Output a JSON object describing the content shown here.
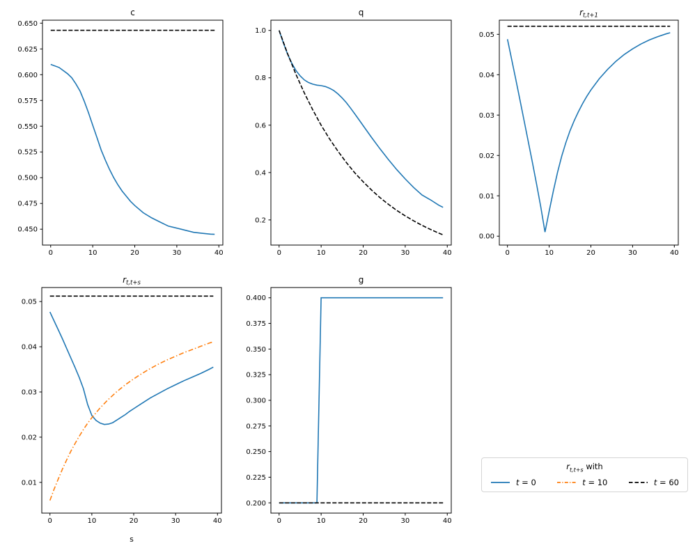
{
  "figure": {
    "background": "#ffffff",
    "colors": {
      "blue": "#1f77b4",
      "orange": "#ff7f0e",
      "black": "#000000"
    }
  },
  "legend": {
    "title": {
      "var": "r",
      "sub": "t,t+s",
      "suffix": " with"
    },
    "entries": [
      {
        "var": "t",
        "rest": " = 0",
        "color": "#1f77b4",
        "dash": "solid"
      },
      {
        "var": "t",
        "rest": " = 10",
        "color": "#ff7f0e",
        "dash": "dashdot"
      },
      {
        "var": "t",
        "rest": " = 60",
        "color": "#000000",
        "dash": "dashed"
      }
    ]
  },
  "chart_data": [
    {
      "type": "line",
      "title": {
        "text": "c",
        "sub": "",
        "math": false
      },
      "xlabel": "",
      "ylabel": "",
      "xlim": [
        -1.95,
        40.95
      ],
      "ylim": [
        0.4346,
        0.6529
      ],
      "grid": false,
      "xticks": [
        "0",
        "10",
        "20",
        "30",
        "40"
      ],
      "yticks": [
        "0.450",
        "0.475",
        "0.500",
        "0.525",
        "0.550",
        "0.575",
        "0.600",
        "0.625",
        "0.650"
      ],
      "series": [
        {
          "name": "blue-solid",
          "color": "#1f77b4",
          "dash": "solid",
          "x": [
            0,
            2,
            4,
            5,
            6,
            7,
            8,
            9,
            10,
            11,
            12,
            13,
            14,
            15,
            16,
            17,
            18,
            19,
            20,
            22,
            24,
            26,
            28,
            30,
            32,
            34,
            36,
            38,
            39
          ],
          "y": [
            0.61,
            0.607,
            0.601,
            0.597,
            0.591,
            0.584,
            0.574,
            0.563,
            0.551,
            0.539,
            0.527,
            0.517,
            0.508,
            0.5,
            0.493,
            0.487,
            0.482,
            0.477,
            0.473,
            0.466,
            0.461,
            0.457,
            0.453,
            0.451,
            0.449,
            0.447,
            0.446,
            0.4452,
            0.445
          ]
        },
        {
          "name": "black-dashed",
          "color": "#000000",
          "dash": "dashed",
          "x": [
            0,
            39
          ],
          "y": [
            0.643,
            0.643
          ]
        }
      ]
    },
    {
      "type": "line",
      "title": {
        "text": "q",
        "sub": "",
        "math": false
      },
      "xlabel": "",
      "ylabel": "",
      "xlim": [
        -1.95,
        40.95
      ],
      "ylim": [
        0.0938,
        1.0432
      ],
      "grid": false,
      "xticks": [
        "0",
        "10",
        "20",
        "30",
        "40"
      ],
      "yticks": [
        "0.2",
        "0.4",
        "0.6",
        "0.8",
        "1.0"
      ],
      "series": [
        {
          "name": "blue-solid",
          "color": "#1f77b4",
          "dash": "solid",
          "x": [
            0,
            1,
            2,
            3,
            4,
            5,
            6,
            7,
            8,
            9,
            10,
            11,
            12,
            13,
            14,
            15,
            16,
            17,
            18,
            19,
            20,
            22,
            24,
            26,
            28,
            30,
            32,
            34,
            36,
            38,
            39
          ],
          "y": [
            1.0,
            0.948,
            0.901,
            0.862,
            0.831,
            0.808,
            0.791,
            0.78,
            0.773,
            0.769,
            0.767,
            0.763,
            0.756,
            0.746,
            0.732,
            0.715,
            0.695,
            0.672,
            0.648,
            0.623,
            0.598,
            0.548,
            0.5,
            0.455,
            0.412,
            0.373,
            0.337,
            0.305,
            0.285,
            0.262,
            0.253
          ]
        },
        {
          "name": "black-dashed",
          "color": "#000000",
          "dash": "dashed",
          "x": [
            0,
            2,
            4,
            6,
            8,
            10,
            12,
            14,
            16,
            18,
            20,
            22,
            24,
            26,
            28,
            30,
            32,
            34,
            36,
            38,
            39
          ],
          "y": [
            1.0,
            0.903,
            0.815,
            0.736,
            0.665,
            0.6,
            0.542,
            0.49,
            0.442,
            0.399,
            0.361,
            0.326,
            0.294,
            0.266,
            0.24,
            0.217,
            0.196,
            0.177,
            0.16,
            0.144,
            0.137
          ]
        }
      ]
    },
    {
      "type": "line",
      "title": {
        "text": "r",
        "sub": "t,t+1",
        "math": true
      },
      "xlabel": "",
      "ylabel": "",
      "xlim": [
        -1.95,
        40.95
      ],
      "ylim": [
        -0.0022,
        0.0535
      ],
      "grid": false,
      "xticks": [
        "0",
        "10",
        "20",
        "30",
        "40"
      ],
      "yticks": [
        "0.00",
        "0.01",
        "0.02",
        "0.03",
        "0.04",
        "0.05"
      ],
      "series": [
        {
          "name": "blue-solid",
          "color": "#1f77b4",
          "dash": "solid",
          "x": [
            0,
            1,
            2,
            3,
            4,
            5,
            6,
            7,
            8,
            9,
            10,
            11,
            12,
            13,
            14,
            15,
            16,
            17,
            18,
            19,
            20,
            22,
            24,
            26,
            28,
            30,
            32,
            34,
            36,
            38,
            39
          ],
          "y": [
            0.0488,
            0.0438,
            0.0388,
            0.0337,
            0.0286,
            0.0234,
            0.0182,
            0.0128,
            0.0072,
            0.001,
            0.0062,
            0.0112,
            0.0158,
            0.0198,
            0.0232,
            0.0261,
            0.0286,
            0.0308,
            0.0328,
            0.0346,
            0.0362,
            0.039,
            0.0413,
            0.0433,
            0.045,
            0.0464,
            0.0476,
            0.0486,
            0.0494,
            0.0501,
            0.0504
          ]
        },
        {
          "name": "black-dashed",
          "color": "#000000",
          "dash": "dashed",
          "x": [
            0,
            39
          ],
          "y": [
            0.052,
            0.052
          ]
        }
      ]
    },
    {
      "type": "line",
      "title": {
        "text": "r",
        "sub": "t,t+s",
        "math": true
      },
      "xlabel": "s",
      "ylabel": "",
      "xlim": [
        -1.95,
        40.95
      ],
      "ylim": [
        0.0032,
        0.0531
      ],
      "grid": false,
      "xticks": [
        "0",
        "10",
        "20",
        "30",
        "40"
      ],
      "yticks": [
        "0.01",
        "0.02",
        "0.03",
        "0.04",
        "0.05"
      ],
      "series": [
        {
          "name": "blue-solid-t0",
          "color": "#1f77b4",
          "dash": "solid",
          "x": [
            0,
            1,
            2,
            3,
            4,
            5,
            6,
            7,
            8,
            9,
            10,
            11,
            12,
            13,
            14,
            15,
            16,
            17,
            18,
            19,
            20,
            22,
            24,
            26,
            28,
            30,
            32,
            34,
            36,
            38,
            39
          ],
          "y": [
            0.0477,
            0.0457,
            0.0437,
            0.0417,
            0.0396,
            0.0375,
            0.0354,
            0.0332,
            0.0307,
            0.0272,
            0.0248,
            0.0237,
            0.0231,
            0.0228,
            0.0229,
            0.0232,
            0.0238,
            0.0244,
            0.025,
            0.0257,
            0.0263,
            0.0275,
            0.0287,
            0.0297,
            0.0307,
            0.0316,
            0.0325,
            0.0333,
            0.0341,
            0.035,
            0.0355
          ]
        },
        {
          "name": "orange-dashdot-t10",
          "color": "#ff7f0e",
          "dash": "dashdot",
          "x": [
            0,
            1,
            2,
            3,
            4,
            5,
            6,
            7,
            8,
            9,
            10,
            12,
            14,
            16,
            18,
            20,
            22,
            24,
            26,
            28,
            30,
            32,
            34,
            36,
            38,
            39
          ],
          "y": [
            0.006,
            0.0085,
            0.0108,
            0.013,
            0.015,
            0.0169,
            0.0186,
            0.0202,
            0.0217,
            0.0231,
            0.0243,
            0.0265,
            0.0284,
            0.0301,
            0.0316,
            0.0329,
            0.0341,
            0.0352,
            0.0362,
            0.0371,
            0.0379,
            0.0387,
            0.0394,
            0.0401,
            0.0408,
            0.0411
          ]
        },
        {
          "name": "black-dashed-t60",
          "color": "#000000",
          "dash": "dashed",
          "x": [
            0,
            39
          ],
          "y": [
            0.0512,
            0.0512
          ]
        }
      ]
    },
    {
      "type": "line",
      "title": {
        "text": "g",
        "sub": "",
        "math": false
      },
      "xlabel": "",
      "ylabel": "",
      "xlim": [
        -1.95,
        40.95
      ],
      "ylim": [
        0.19,
        0.41
      ],
      "grid": false,
      "xticks": [
        "0",
        "10",
        "20",
        "30",
        "40"
      ],
      "yticks": [
        "0.200",
        "0.225",
        "0.250",
        "0.275",
        "0.300",
        "0.325",
        "0.350",
        "0.375",
        "0.400"
      ],
      "series": [
        {
          "name": "blue-solid-step",
          "color": "#1f77b4",
          "dash": "solid",
          "x": [
            0,
            9,
            10,
            39
          ],
          "y": [
            0.2,
            0.2,
            0.4,
            0.4
          ]
        },
        {
          "name": "black-dashed",
          "color": "#000000",
          "dash": "dashed",
          "x": [
            0,
            39
          ],
          "y": [
            0.2,
            0.2
          ]
        }
      ]
    }
  ]
}
